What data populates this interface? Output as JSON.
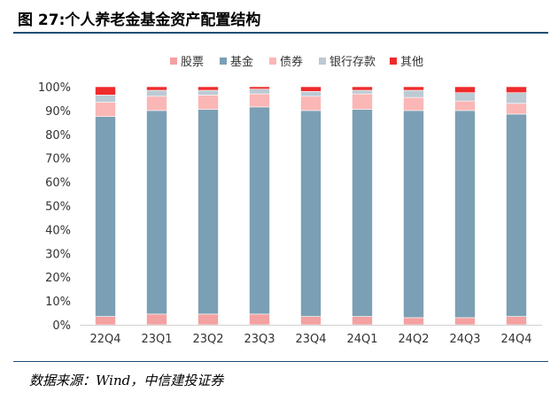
{
  "header": {
    "title": "图 27:个人养老金基金资产配置结构"
  },
  "footer": {
    "source": "数据来源：Wind，中信建投证券"
  },
  "chart_data": {
    "type": "bar",
    "stacked": true,
    "title": "",
    "xlabel": "",
    "ylabel": "",
    "ylim": [
      0,
      100
    ],
    "yticks": [
      "0%",
      "10%",
      "20%",
      "30%",
      "40%",
      "50%",
      "60%",
      "70%",
      "80%",
      "90%",
      "100%"
    ],
    "legend_position": "top",
    "categories": [
      "22Q4",
      "23Q1",
      "23Q2",
      "23Q3",
      "23Q4",
      "24Q1",
      "24Q2",
      "24Q3",
      "24Q4"
    ],
    "series": [
      {
        "name": "股票",
        "color": "#f4a1a1",
        "values": [
          3.5,
          4.5,
          4.5,
          4.5,
          3.5,
          3.5,
          3.0,
          3.0,
          3.5
        ]
      },
      {
        "name": "基金",
        "color": "#7b9fb4",
        "values": [
          84.0,
          85.5,
          86.0,
          87.0,
          86.5,
          87.0,
          87.0,
          87.0,
          85.0
        ]
      },
      {
        "name": "债券",
        "color": "#fbb6b6",
        "values": [
          6.0,
          6.0,
          6.0,
          5.5,
          6.0,
          6.5,
          5.5,
          4.0,
          4.5
        ]
      },
      {
        "name": "银行存款",
        "color": "#bccad4",
        "values": [
          3.0,
          2.5,
          2.0,
          2.0,
          2.0,
          1.5,
          3.0,
          3.5,
          4.5
        ]
      },
      {
        "name": "其他",
        "color": "#ef2b2b",
        "values": [
          3.5,
          1.5,
          1.5,
          1.0,
          2.0,
          1.5,
          1.5,
          2.5,
          2.5
        ]
      }
    ]
  }
}
